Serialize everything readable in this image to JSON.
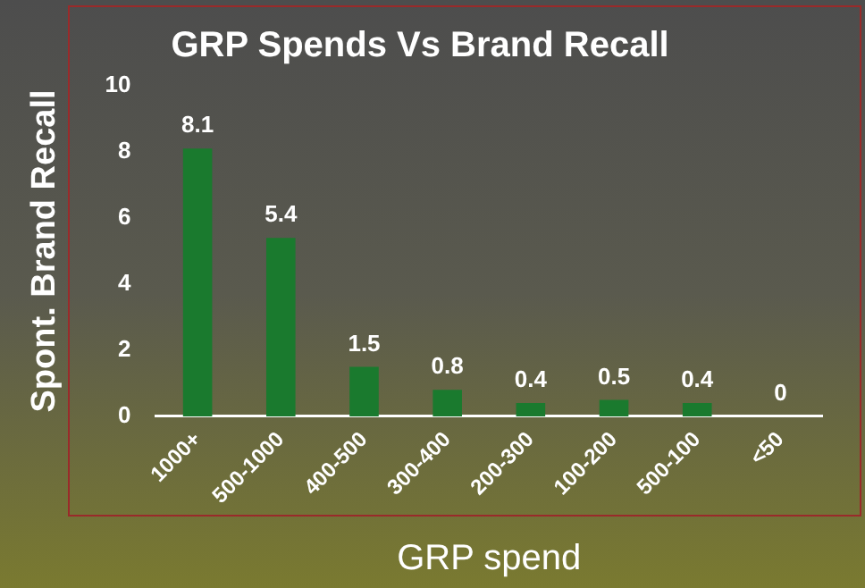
{
  "chart_data": {
    "type": "bar",
    "title": "GRP Spends Vs Brand Recall",
    "xlabel": "GRP spend",
    "ylabel": "Spont. Brand Recall",
    "categories": [
      "1000+",
      "500-1000",
      "400-500",
      "300-400",
      "200-300",
      "100-200",
      "500-100",
      "<50"
    ],
    "values": [
      8.1,
      5.4,
      1.5,
      0.8,
      0.4,
      0.5,
      0.4,
      0
    ],
    "color": "#1a7a2e",
    "ylim": [
      0,
      10
    ],
    "yticks": [
      0,
      2,
      4,
      6,
      8,
      10
    ],
    "grid": false,
    "legend": false,
    "data_labels": true
  }
}
